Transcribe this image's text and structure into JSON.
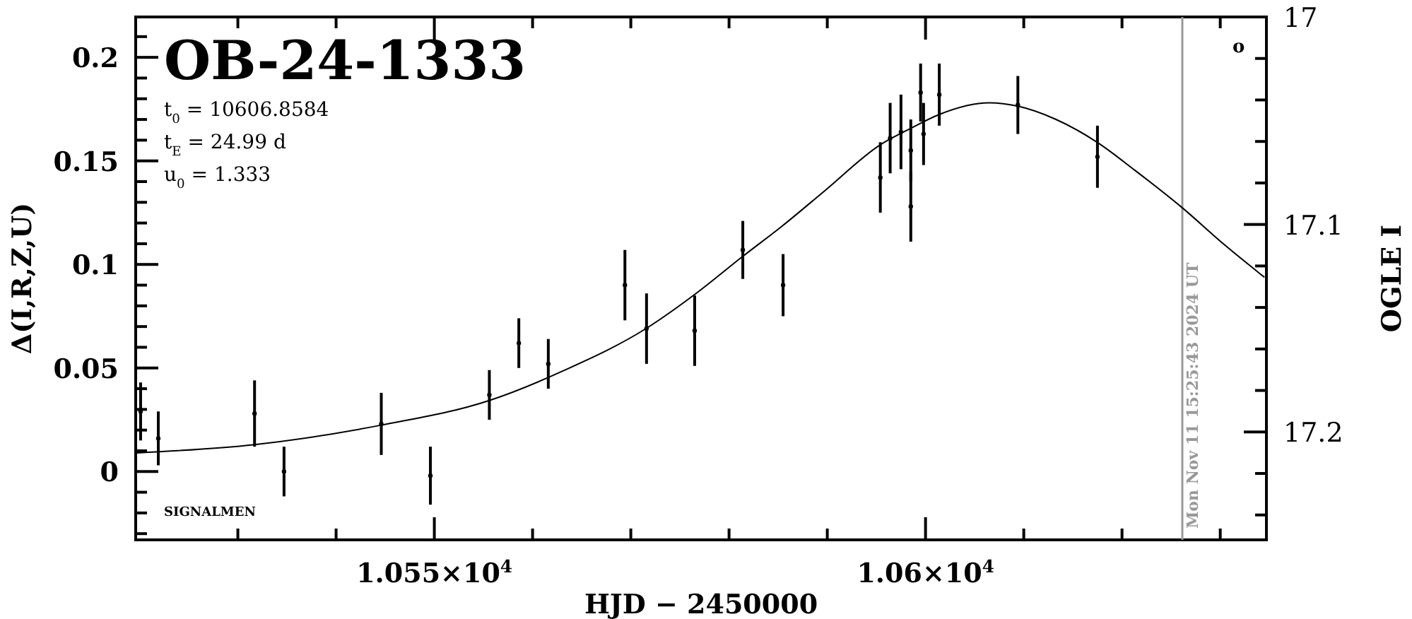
{
  "chart_data": {
    "type": "scatter",
    "title": "OB-24-1333",
    "xlabel": "HJD − 2450000",
    "ylabel": "Δ(I,R,Z,U)",
    "y2label": "OGLE I",
    "annotations": [
      "t$_{0}$ = 10606.8584",
      "t$_{E}$ = 24.99 d",
      "u$_{0}$ = 1.333",
      "SIGNALMEN",
      "o",
      "Mon Nov 11 15:25:43 2024 UT"
    ],
    "xlim": [
      10519.6,
      10634.7
    ],
    "xticks": [
      {
        "value": 10530,
        "label": null
      },
      {
        "value": 10540,
        "label": null
      },
      {
        "value": 10550,
        "label": "1.055×10$^{4}$"
      },
      {
        "value": 10560,
        "label": null
      },
      {
        "value": 10570,
        "label": null
      },
      {
        "value": 10580,
        "label": null
      },
      {
        "value": 10590,
        "label": null
      },
      {
        "value": 10600,
        "label": "1.06×10$^{4}$"
      },
      {
        "value": 10610,
        "label": null
      },
      {
        "value": 10620,
        "label": null
      },
      {
        "value": 10630,
        "label": null
      }
    ],
    "ylim": [
      -0.033,
      0.2195
    ],
    "yticks": [
      {
        "value": -0.03,
        "label": null
      },
      {
        "value": -0.02,
        "label": null
      },
      {
        "value": -0.01,
        "label": null
      },
      0,
      {
        "value": 0.01,
        "label": null
      },
      {
        "value": 0.02,
        "label": null
      },
      {
        "value": 0.03,
        "label": null
      },
      {
        "value": 0.04,
        "label": null
      },
      0.05,
      {
        "value": 0.06,
        "label": null
      },
      {
        "value": 0.07,
        "label": null
      },
      {
        "value": 0.08,
        "label": null
      },
      {
        "value": 0.09,
        "label": null
      },
      0.1,
      {
        "value": 0.11,
        "label": null
      },
      {
        "value": 0.12,
        "label": null
      },
      {
        "value": 0.13,
        "label": null
      },
      {
        "value": 0.14,
        "label": null
      },
      0.15,
      {
        "value": 0.16,
        "label": null
      },
      {
        "value": 0.17,
        "label": null
      },
      {
        "value": 0.18,
        "label": null
      },
      {
        "value": 0.19,
        "label": null
      },
      0.2,
      {
        "value": 0.21,
        "label": null
      }
    ],
    "y2lim": [
      17.252,
      17.0
    ],
    "y2ticks": [
      17,
      {
        "value": 17.02,
        "label": null
      },
      {
        "value": 17.04,
        "label": null
      },
      {
        "value": 17.06,
        "label": null
      },
      {
        "value": 17.08,
        "label": null
      },
      17.1,
      {
        "value": 17.12,
        "label": null
      },
      {
        "value": 17.14,
        "label": null
      },
      {
        "value": 17.16,
        "label": null
      },
      {
        "value": 17.18,
        "label": null
      },
      17.2,
      {
        "value": 17.22,
        "label": null
      },
      {
        "value": 17.24,
        "label": null
      }
    ],
    "ref_lines": [
      {
        "axis": "x",
        "value": 10626.14,
        "color": "#999999"
      }
    ],
    "series": [
      {
        "color": "#000000",
        "marker": "circle",
        "x": [
          10520.1,
          10521.9,
          10531.7,
          10534.7,
          10544.6,
          10549.6,
          10555.6,
          10558.6,
          10561.6,
          10569.4,
          10571.6,
          10576.5,
          10581.4,
          10585.5,
          10595.4,
          10596.4,
          10597.5,
          10598.5,
          10598.5,
          10599.5,
          10599.8,
          10601.4,
          10609.4,
          10617.5
        ],
        "values": [
          0.029,
          0.016,
          0.028,
          0.0,
          0.023,
          -0.002,
          0.037,
          0.062,
          0.052,
          0.09,
          0.069,
          0.068,
          0.107,
          0.09,
          0.142,
          0.161,
          0.164,
          0.155,
          0.128,
          0.183,
          0.163,
          0.182,
          0.177,
          0.152
        ],
        "errors": [
          0.014,
          0.013,
          0.016,
          0.012,
          0.015,
          0.014,
          0.012,
          0.012,
          0.012,
          0.017,
          0.017,
          0.017,
          0.014,
          0.015,
          0.017,
          0.017,
          0.018,
          0.015,
          0.017,
          0.014,
          0.015,
          0.015,
          0.014,
          0.015
        ]
      },
      {
        "type": "line",
        "color": "#000000",
        "x": [
          10519.7,
          10531.7,
          10544.6,
          10555.6,
          10563.3,
          10571.6,
          10576.5,
          10581.4,
          10585.4,
          10589.7,
          10595.4,
          10598.5,
          10601.4,
          10606.5,
          10609.4,
          10613.2,
          10617.5,
          10621.3,
          10626.1,
          10630.4,
          10634.5
        ],
        "values": [
          0.009,
          0.013,
          0.0224,
          0.0343,
          0.049,
          0.0692,
          0.0855,
          0.1039,
          0.1185,
          0.1354,
          0.1578,
          0.1657,
          0.1724,
          0.178,
          0.1764,
          0.1702,
          0.1589,
          0.1455,
          0.1275,
          0.1096,
          0.0938
        ]
      }
    ]
  }
}
